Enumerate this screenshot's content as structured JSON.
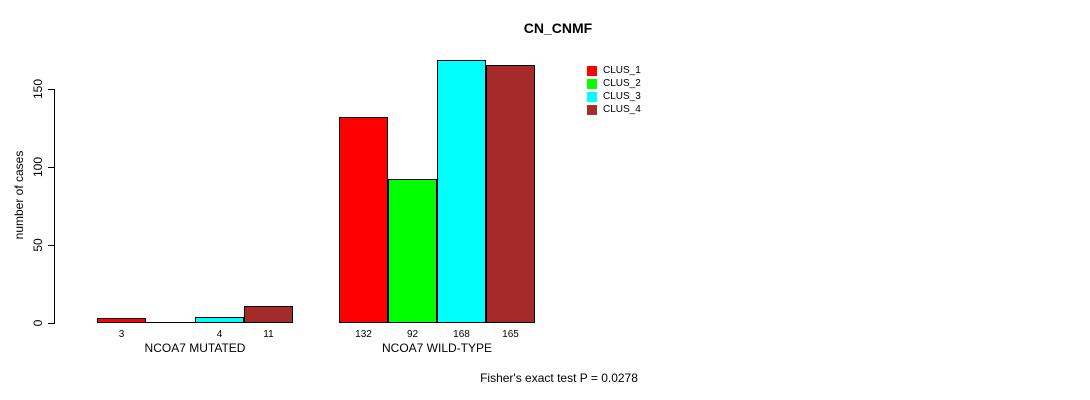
{
  "chart_data": {
    "type": "bar",
    "title": "CN_CNMF",
    "ylabel": "number of cases",
    "xlabel": "",
    "categories": [
      "NCOA7 MUTATED",
      "NCOA7 WILD-TYPE"
    ],
    "series": [
      {
        "name": "CLUS_1",
        "color": "#FF0000",
        "values": [
          3,
          132
        ]
      },
      {
        "name": "CLUS_2",
        "color": "#00FF00",
        "values": [
          0,
          92
        ]
      },
      {
        "name": "CLUS_3",
        "color": "#00FFFF",
        "values": [
          4,
          168
        ]
      },
      {
        "name": "CLUS_4",
        "color": "#A52A2A",
        "values": [
          11,
          165
        ]
      }
    ],
    "bar_value_labels": [
      [
        "3",
        "",
        "4",
        "11"
      ],
      [
        "132",
        "92",
        "168",
        "165"
      ]
    ],
    "yticks": [
      0,
      50,
      100,
      150
    ],
    "ylim": [
      0,
      168
    ],
    "grid": false,
    "legend_position": "top-right",
    "legend_entries": [
      "CLUS_1",
      "CLUS_2",
      "CLUS_3",
      "CLUS_4"
    ],
    "annotation": "Fisher's exact test P = 0.0278",
    "background_color": "#FFFFFF",
    "axis_color": "#000000"
  }
}
